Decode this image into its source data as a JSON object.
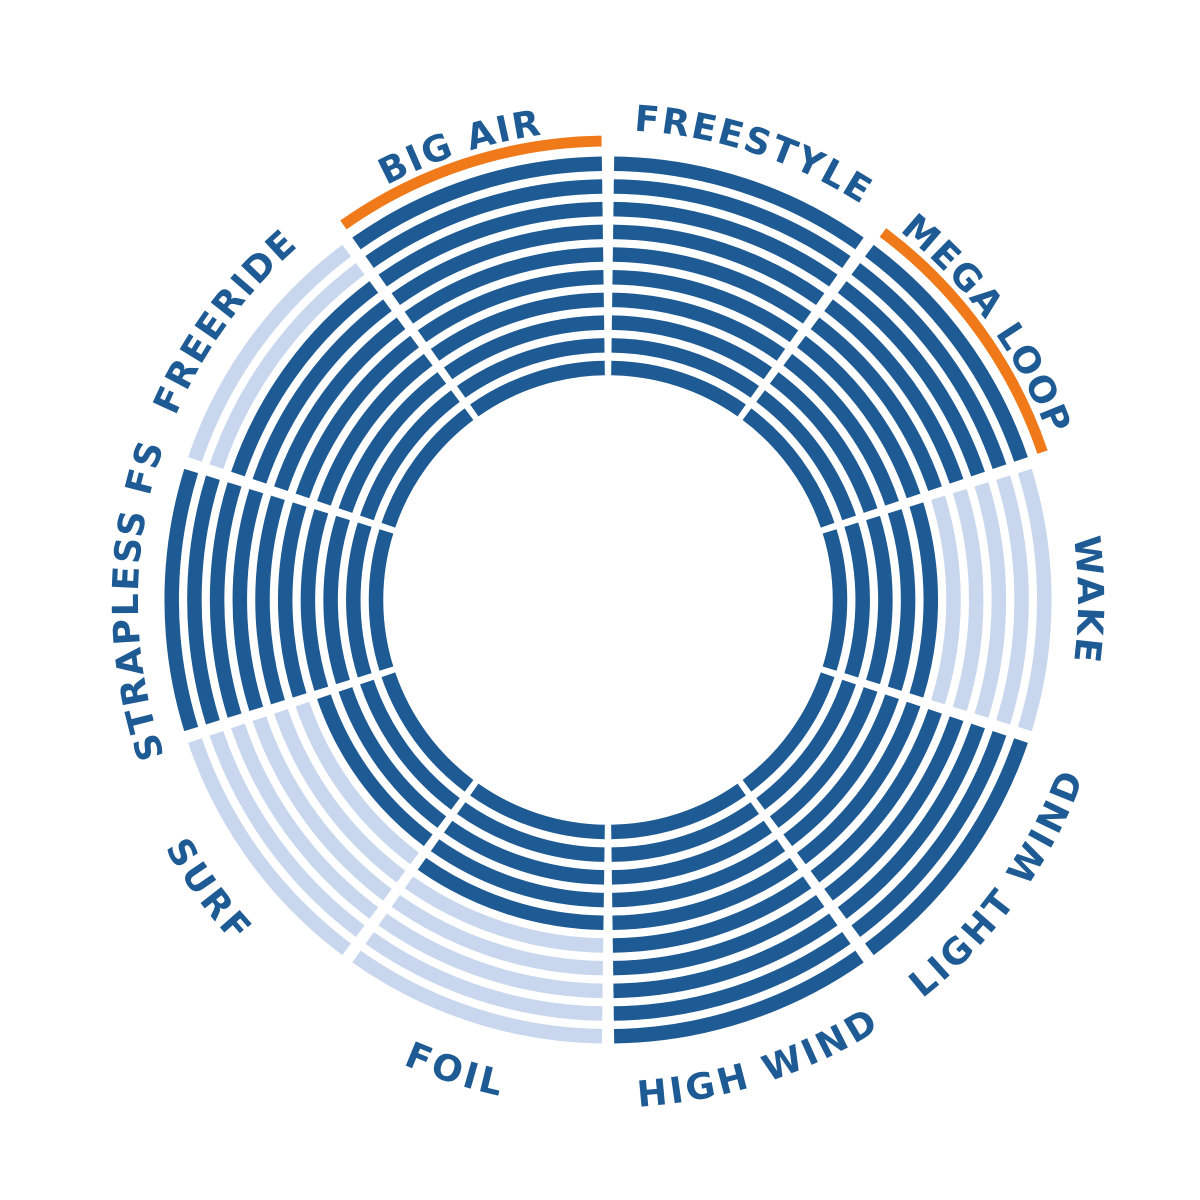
{
  "chart_data": {
    "type": "radial_bar",
    "max_value": 10,
    "colors": {
      "filled": "#1e5b94",
      "empty": "#c8d7ee",
      "highlight": "#f07a1a"
    },
    "segments": [
      {
        "name": "FREESTYLE",
        "value": 10,
        "highlight": false
      },
      {
        "name": "MEGA LOOP",
        "value": 10,
        "highlight": true
      },
      {
        "name": "WAKE",
        "value": 5,
        "highlight": false
      },
      {
        "name": "LIGHT WIND",
        "value": 10,
        "highlight": false
      },
      {
        "name": "HIGH WIND",
        "value": 10,
        "highlight": false
      },
      {
        "name": "FOIL",
        "value": 5,
        "highlight": false
      },
      {
        "name": "SURF",
        "value": 4,
        "highlight": false
      },
      {
        "name": "STRAPLESS FS",
        "value": 10,
        "highlight": false
      },
      {
        "name": "FREERIDE",
        "value": 8,
        "highlight": false
      },
      {
        "name": "BIG AIR",
        "value": 10,
        "highlight": true
      }
    ]
  }
}
